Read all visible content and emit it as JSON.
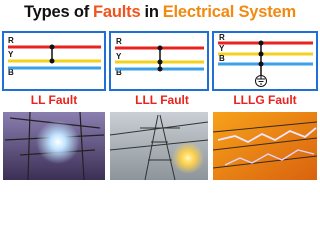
{
  "title": [
    "Types of",
    "Faults",
    "in",
    "Electrical System"
  ],
  "panels": [
    {
      "phases": [
        "R",
        "Y",
        "B"
      ],
      "caption": "LL Fault"
    },
    {
      "phases": [
        "R",
        "Y",
        "B"
      ],
      "caption": "LLL Fault"
    },
    {
      "phases": [
        "R",
        "Y",
        "B"
      ],
      "caption": "LLLG Fault"
    }
  ]
}
